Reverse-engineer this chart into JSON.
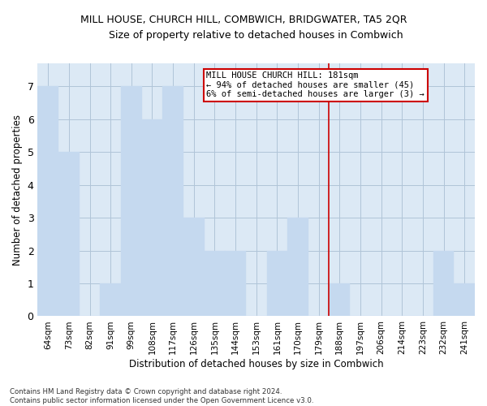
{
  "title": "MILL HOUSE, CHURCH HILL, COMBWICH, BRIDGWATER, TA5 2QR",
  "subtitle": "Size of property relative to detached houses in Combwich",
  "xlabel": "Distribution of detached houses by size in Combwich",
  "ylabel": "Number of detached properties",
  "footer_line1": "Contains HM Land Registry data © Crown copyright and database right 2024.",
  "footer_line2": "Contains public sector information licensed under the Open Government Licence v3.0.",
  "categories": [
    "64sqm",
    "73sqm",
    "82sqm",
    "91sqm",
    "99sqm",
    "108sqm",
    "117sqm",
    "126sqm",
    "135sqm",
    "144sqm",
    "153sqm",
    "161sqm",
    "170sqm",
    "179sqm",
    "188sqm",
    "197sqm",
    "206sqm",
    "214sqm",
    "223sqm",
    "232sqm",
    "241sqm"
  ],
  "values": [
    7,
    5,
    0,
    1,
    7,
    6,
    7,
    3,
    2,
    2,
    0,
    2,
    3,
    0,
    1,
    0,
    0,
    0,
    0,
    2,
    1
  ],
  "bar_color": "#c5d9ef",
  "bar_edge_color": "#c5d9ef",
  "vline_x": 13.5,
  "vline_color": "#cc0000",
  "annotation_text": "MILL HOUSE CHURCH HILL: 181sqm\n← 94% of detached houses are smaller (45)\n6% of semi-detached houses are larger (3) →",
  "annotation_box_color": "#ffffff",
  "annotation_box_edge_color": "#cc0000",
  "ylim": [
    0,
    7.7
  ],
  "yticks": [
    0,
    1,
    2,
    3,
    4,
    5,
    6,
    7
  ],
  "ax_facecolor": "#dce9f5",
  "background_color": "#ffffff",
  "grid_color": "#b0c4d8"
}
